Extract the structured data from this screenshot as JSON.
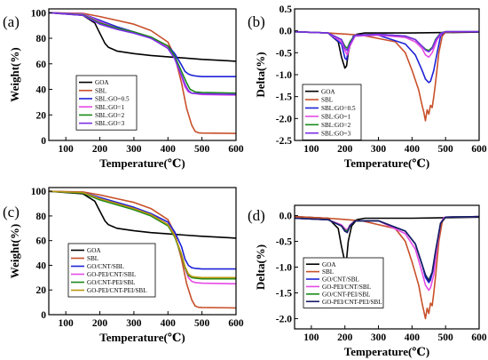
{
  "chart_data": [
    {
      "panel": "(a)",
      "type": "line",
      "xlabel": "Temperature(℃)",
      "ylabel": "Weight(%)",
      "xlim": [
        50,
        600
      ],
      "ylim": [
        0,
        103
      ],
      "xticks": [
        100,
        200,
        300,
        400,
        500,
        600
      ],
      "yticks": [
        0,
        20,
        40,
        60,
        80,
        100
      ],
      "legend_position": "center-left",
      "series": [
        {
          "name": "GOA",
          "color": "#000000",
          "x": [
            50,
            150,
            185,
            200,
            215,
            225,
            250,
            300,
            350,
            400,
            450,
            500,
            550,
            600
          ],
          "y": [
            100,
            98,
            92,
            84,
            76,
            73,
            70,
            68,
            66.5,
            65.5,
            64.5,
            63.5,
            62.8,
            62
          ]
        },
        {
          "name": "SBL",
          "color": "#c8502a",
          "x": [
            50,
            150,
            200,
            250,
            300,
            350,
            400,
            420,
            440,
            455,
            470,
            480,
            490,
            500,
            600
          ],
          "y": [
            100,
            99.5,
            97,
            94,
            91,
            86,
            77,
            66,
            45,
            25,
            12,
            7,
            6,
            5.8,
            5.5
          ]
        },
        {
          "name": "SBL:GO=0.5",
          "color": "#1f22d6",
          "x": [
            50,
            150,
            200,
            250,
            300,
            350,
            400,
            420,
            440,
            450,
            460,
            470,
            480,
            500,
            600
          ],
          "y": [
            100,
            99,
            94,
            89,
            85,
            80,
            74,
            68,
            59,
            54,
            52,
            51,
            50.5,
            50,
            50
          ]
        },
        {
          "name": "SBL:GO=1",
          "color": "#e64ae6",
          "x": [
            50,
            150,
            200,
            250,
            300,
            350,
            400,
            420,
            440,
            450,
            460,
            470,
            500,
            600
          ],
          "y": [
            100,
            99,
            93,
            88,
            85,
            80,
            73,
            64,
            50,
            42,
            38,
            37,
            36,
            35.5
          ]
        },
        {
          "name": "SBL:GO=2",
          "color": "#1a8a1a",
          "x": [
            50,
            150,
            200,
            250,
            300,
            350,
            400,
            420,
            440,
            455,
            465,
            480,
            500,
            600
          ],
          "y": [
            100,
            98.5,
            92,
            88,
            85,
            81,
            74,
            66,
            54,
            45,
            40,
            38,
            37.5,
            37
          ]
        },
        {
          "name": "SBL:GO=3",
          "color": "#7a2ee6",
          "x": [
            50,
            150,
            200,
            250,
            300,
            350,
            400,
            420,
            440,
            450,
            460,
            470,
            500,
            600
          ],
          "y": [
            100,
            98,
            91,
            87,
            84,
            80,
            72,
            64,
            51,
            44,
            39,
            37,
            36.5,
            36
          ]
        }
      ]
    },
    {
      "panel": "(b)",
      "type": "line",
      "xlabel": "Temperature(℃)",
      "ylabel": "Delta(%)",
      "xlim": [
        50,
        600
      ],
      "ylim": [
        -2.5,
        0.5
      ],
      "xticks": [
        100,
        200,
        300,
        400,
        500,
        600
      ],
      "yticks": [
        0.5,
        0.0,
        -0.5,
        -1.0,
        -1.5,
        -2.0,
        -2.5
      ],
      "legend_position": "bottom-left",
      "series": [
        {
          "name": "GOA",
          "color": "#000000",
          "x": [
            50,
            150,
            180,
            190,
            200,
            205,
            210,
            220,
            235,
            260,
            300,
            400,
            500,
            600
          ],
          "y": [
            -0.02,
            -0.05,
            -0.25,
            -0.6,
            -0.85,
            -0.8,
            -0.5,
            -0.2,
            -0.08,
            -0.05,
            -0.05,
            -0.05,
            -0.04,
            -0.03
          ]
        },
        {
          "name": "SBL",
          "color": "#c8502a",
          "x": [
            50,
            150,
            250,
            350,
            380,
            400,
            420,
            430,
            435,
            440,
            445,
            450,
            455,
            460,
            465,
            470,
            480,
            490,
            500,
            600
          ],
          "y": [
            -0.02,
            -0.05,
            -0.1,
            -0.25,
            -0.5,
            -0.9,
            -1.35,
            -1.7,
            -1.85,
            -2.05,
            -1.8,
            -1.9,
            -1.7,
            -1.75,
            -1.5,
            -1.2,
            -0.5,
            -0.12,
            -0.03,
            -0.02
          ]
        },
        {
          "name": "SBL:GO=0.5",
          "color": "#1f22d6",
          "x": [
            50,
            150,
            190,
            200,
            205,
            210,
            225,
            300,
            380,
            410,
            430,
            440,
            450,
            455,
            465,
            475,
            485,
            495,
            500,
            600
          ],
          "y": [
            -0.02,
            -0.05,
            -0.3,
            -0.62,
            -0.66,
            -0.45,
            -0.12,
            -0.1,
            -0.3,
            -0.55,
            -0.9,
            -1.1,
            -1.18,
            -1.15,
            -0.9,
            -0.5,
            -0.12,
            -0.03,
            -0.02,
            -0.02
          ]
        },
        {
          "name": "SBL:GO=1",
          "color": "#e64ae6",
          "x": [
            50,
            150,
            190,
            200,
            207,
            215,
            230,
            300,
            380,
            410,
            430,
            440,
            450,
            460,
            475,
            490,
            500,
            600
          ],
          "y": [
            -0.02,
            -0.05,
            -0.25,
            -0.45,
            -0.55,
            -0.35,
            -0.12,
            -0.1,
            -0.15,
            -0.25,
            -0.4,
            -0.55,
            -0.6,
            -0.5,
            -0.2,
            -0.04,
            -0.02,
            -0.02
          ]
        },
        {
          "name": "SBL:GO=2",
          "color": "#1a8a1a",
          "x": [
            50,
            150,
            190,
            200,
            207,
            215,
            230,
            300,
            380,
            410,
            430,
            440,
            450,
            460,
            470,
            485,
            500,
            600
          ],
          "y": [
            -0.02,
            -0.05,
            -0.2,
            -0.35,
            -0.4,
            -0.25,
            -0.1,
            -0.08,
            -0.12,
            -0.2,
            -0.35,
            -0.42,
            -0.45,
            -0.38,
            -0.2,
            -0.05,
            -0.02,
            -0.02
          ]
        },
        {
          "name": "SBL:GO=3",
          "color": "#7a2ee6",
          "x": [
            50,
            150,
            190,
            200,
            207,
            215,
            230,
            300,
            380,
            410,
            430,
            440,
            450,
            460,
            470,
            485,
            500,
            600
          ],
          "y": [
            -0.02,
            -0.05,
            -0.2,
            -0.4,
            -0.45,
            -0.3,
            -0.1,
            -0.08,
            -0.12,
            -0.2,
            -0.35,
            -0.44,
            -0.48,
            -0.4,
            -0.22,
            -0.06,
            -0.02,
            -0.02
          ]
        }
      ]
    },
    {
      "panel": "(c)",
      "type": "line",
      "xlabel": "Temperature(℃)",
      "ylabel": "Weight(%)",
      "xlim": [
        50,
        600
      ],
      "ylim": [
        0,
        103
      ],
      "xticks": [
        100,
        200,
        300,
        400,
        500,
        600
      ],
      "yticks": [
        0,
        20,
        40,
        60,
        80,
        100
      ],
      "legend_position": "center-left",
      "series": [
        {
          "name": "GOA",
          "color": "#000000",
          "x": [
            50,
            150,
            185,
            200,
            215,
            225,
            250,
            300,
            350,
            400,
            450,
            500,
            550,
            600
          ],
          "y": [
            100,
            98,
            92,
            84,
            76,
            73,
            70,
            68,
            66.5,
            65.5,
            64.5,
            63.5,
            62.8,
            62
          ]
        },
        {
          "name": "SBL",
          "color": "#c8502a",
          "x": [
            50,
            150,
            200,
            250,
            300,
            350,
            400,
            420,
            440,
            455,
            470,
            480,
            490,
            500,
            600
          ],
          "y": [
            100,
            99.5,
            97,
            94,
            91,
            86,
            77,
            66,
            45,
            25,
            12,
            7,
            6,
            5.8,
            5.5
          ]
        },
        {
          "name": "GO/CNT/SBL",
          "color": "#1f22d6",
          "x": [
            50,
            150,
            200,
            250,
            300,
            350,
            400,
            420,
            440,
            450,
            460,
            470,
            480,
            500,
            600
          ],
          "y": [
            100,
            99,
            95,
            91,
            87,
            82,
            75,
            67,
            55,
            45,
            40,
            38,
            37.5,
            37,
            37
          ]
        },
        {
          "name": "GO-PEI/CNT/SBL",
          "color": "#e64ae6",
          "x": [
            50,
            150,
            200,
            250,
            300,
            350,
            400,
            420,
            440,
            450,
            460,
            470,
            480,
            500,
            600
          ],
          "y": [
            100,
            99,
            94,
            90,
            86,
            81,
            73,
            64,
            48,
            38,
            30,
            27,
            26,
            25.5,
            25
          ]
        },
        {
          "name": "GO/CNT-PEI/SBL",
          "color": "#1a8a1a",
          "x": [
            50,
            150,
            200,
            250,
            300,
            350,
            400,
            420,
            440,
            450,
            460,
            470,
            480,
            500,
            600
          ],
          "y": [
            100,
            98.5,
            93,
            89,
            85,
            80,
            72,
            63,
            48,
            38,
            32,
            30,
            29.5,
            29,
            29
          ]
        },
        {
          "name": "GO-PEI/CNT-PEI/SBL",
          "color": "#b8960f",
          "x": [
            50,
            150,
            200,
            250,
            300,
            350,
            400,
            420,
            440,
            450,
            460,
            470,
            480,
            500,
            600
          ],
          "y": [
            100,
            99,
            94,
            90,
            86,
            81,
            73,
            64,
            49,
            39,
            33,
            31,
            30.5,
            30,
            30
          ]
        }
      ]
    },
    {
      "panel": "(d)",
      "type": "line",
      "xlabel": "Temperature(℃)",
      "ylabel": "Delta(%)",
      "xlim": [
        50,
        600
      ],
      "ylim": [
        -2.2,
        0.2
      ],
      "xticks": [
        100,
        200,
        300,
        400,
        500,
        600
      ],
      "yticks": [
        0.0,
        -0.5,
        -1.0,
        -1.5,
        -2.0
      ],
      "legend_position": "bottom-left",
      "series": [
        {
          "name": "GOA",
          "color": "#000000",
          "x": [
            50,
            150,
            180,
            190,
            200,
            205,
            210,
            220,
            235,
            260,
            300,
            400,
            500,
            600
          ],
          "y": [
            -0.02,
            -0.05,
            -0.25,
            -0.6,
            -0.9,
            -0.85,
            -0.5,
            -0.2,
            -0.08,
            -0.05,
            -0.05,
            -0.05,
            -0.04,
            -0.03
          ]
        },
        {
          "name": "SBL",
          "color": "#c8502a",
          "x": [
            50,
            150,
            250,
            350,
            380,
            400,
            420,
            430,
            435,
            440,
            445,
            450,
            455,
            460,
            465,
            470,
            480,
            490,
            500,
            600
          ],
          "y": [
            -0.02,
            -0.05,
            -0.1,
            -0.25,
            -0.5,
            -0.9,
            -1.35,
            -1.7,
            -1.85,
            -2.0,
            -1.8,
            -1.9,
            -1.7,
            -1.75,
            -1.5,
            -1.2,
            -0.5,
            -0.12,
            -0.03,
            -0.02
          ]
        },
        {
          "name": "GO/CNT/SBL",
          "color": "#1f22d6",
          "x": [
            50,
            150,
            190,
            200,
            207,
            215,
            230,
            300,
            380,
            410,
            430,
            440,
            450,
            455,
            465,
            475,
            485,
            495,
            500,
            600
          ],
          "y": [
            -0.05,
            -0.08,
            -0.2,
            -0.3,
            -0.32,
            -0.2,
            -0.1,
            -0.1,
            -0.3,
            -0.55,
            -0.95,
            -1.2,
            -1.3,
            -1.25,
            -1.0,
            -0.55,
            -0.15,
            -0.04,
            -0.03,
            -0.02
          ]
        },
        {
          "name": "GO-PEI/CNT/SBL",
          "color": "#e64ae6",
          "x": [
            50,
            150,
            190,
            200,
            207,
            215,
            230,
            300,
            380,
            410,
            430,
            440,
            450,
            455,
            465,
            475,
            485,
            495,
            500,
            600
          ],
          "y": [
            -0.05,
            -0.08,
            -0.18,
            -0.25,
            -0.28,
            -0.18,
            -0.1,
            -0.1,
            -0.35,
            -0.65,
            -1.1,
            -1.35,
            -1.45,
            -1.4,
            -1.15,
            -0.6,
            -0.15,
            -0.04,
            -0.03,
            -0.02
          ]
        },
        {
          "name": "GO/CNT-PEI/SBL",
          "color": "#1a8a1a",
          "x": [
            50,
            150,
            190,
            200,
            207,
            215,
            230,
            300,
            380,
            410,
            430,
            440,
            450,
            460,
            470,
            485,
            500,
            600
          ],
          "y": [
            -0.05,
            -0.08,
            -0.2,
            -0.28,
            -0.3,
            -0.2,
            -0.1,
            -0.1,
            -0.3,
            -0.55,
            -0.95,
            -1.15,
            -1.25,
            -1.1,
            -0.7,
            -0.15,
            -0.03,
            -0.02
          ]
        },
        {
          "name": "GO-PEI/CNT-PEI/SBL",
          "color": "#1a1a6e",
          "x": [
            50,
            150,
            190,
            200,
            207,
            215,
            230,
            300,
            380,
            410,
            430,
            440,
            450,
            460,
            470,
            485,
            500,
            600
          ],
          "y": [
            -0.05,
            -0.08,
            -0.2,
            -0.3,
            -0.33,
            -0.2,
            -0.1,
            -0.1,
            -0.3,
            -0.55,
            -0.95,
            -1.15,
            -1.27,
            -1.1,
            -0.7,
            -0.15,
            -0.03,
            -0.02
          ]
        }
      ]
    }
  ]
}
